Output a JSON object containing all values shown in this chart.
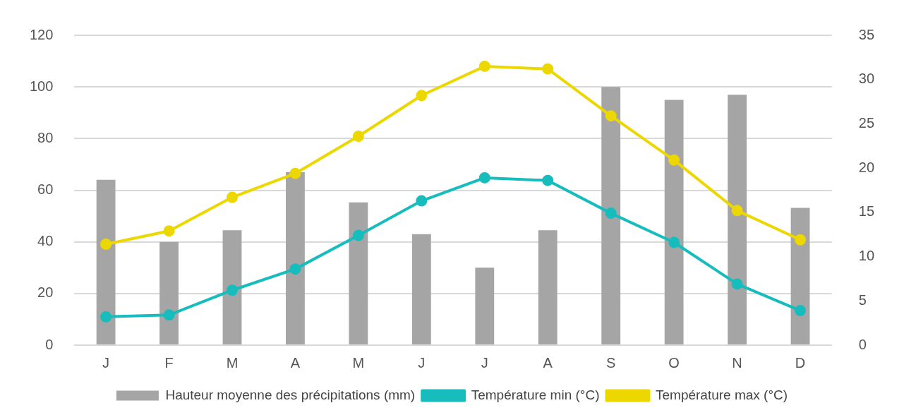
{
  "chart_data": {
    "type": "bar",
    "categories": [
      "J",
      "F",
      "M",
      "A",
      "M",
      "J",
      "J",
      "A",
      "S",
      "O",
      "N",
      "D"
    ],
    "series": [
      {
        "name": "Hauteur moyenne des précipitations (mm)",
        "color": "#a5a5a5",
        "values": [
          64,
          40,
          44.5,
          67,
          55.3,
          43,
          30,
          44.5,
          100,
          95,
          97,
          53.2
        ]
      },
      {
        "name": "Température min (°C)",
        "type": "line",
        "axis": "y2",
        "color": "#17bcbc",
        "values": [
          3.2,
          3.4,
          6.2,
          8.6,
          12.4,
          16.3,
          18.9,
          18.6,
          14.9,
          11.6,
          6.9,
          3.9
        ]
      },
      {
        "name": "Température max (°C)",
        "type": "line",
        "axis": "y2",
        "color": "#ecd800",
        "values": [
          11.4,
          12.9,
          16.7,
          19.4,
          23.6,
          28.2,
          31.5,
          31.2,
          25.9,
          20.9,
          15.2,
          11.9
        ]
      }
    ],
    "ylim": [
      0,
      120
    ],
    "yticks": [
      0,
      20,
      40,
      60,
      80,
      100,
      120
    ],
    "y2lim": [
      0,
      35
    ],
    "y2ticks": [
      0,
      5,
      10,
      15,
      20,
      25,
      30,
      35
    ],
    "grid": "y",
    "legend": "bottom",
    "marker": "circle",
    "line_style": "solid"
  }
}
